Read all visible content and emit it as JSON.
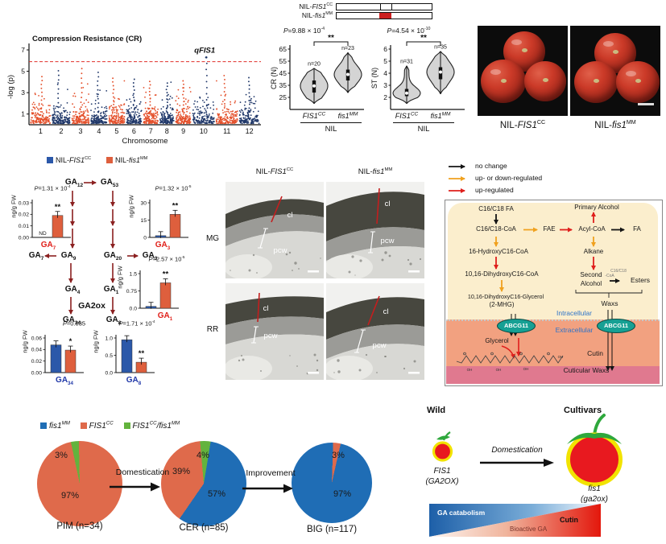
{
  "colors": {
    "chr_orange": "#e4502b",
    "chr_navy": "#20386a",
    "threshold_red": "#e0312a",
    "blue": "#2b58a9",
    "orange": "#de5f3d",
    "ga_red": "#e0201a",
    "ga_blue": "#2038a8",
    "arrow_dark": "#8b2020",
    "pie_blue": "#1f6db5",
    "pie_orange": "#df6a4b",
    "pie_green": "#63b33d",
    "wax_black": "#151515",
    "wax_orange": "#f0a11e",
    "wax_red": "#df1f1c",
    "cream": "#fbeecd",
    "salmon": "#f2a180",
    "pink_band": "#e0798f",
    "teal": "#16a094",
    "blue_text": "#2e74c8",
    "violin_fill": "#d4d4d4",
    "tomato_red": "#e8191f",
    "tomato_yellow": "#f2e300",
    "tomato_green": "#2ea83c",
    "wedge_blue": "#1d5fa8",
    "wedge_red": "#e3170c"
  },
  "manhattan": {
    "title": "Compression Resistance (CR)",
    "ylabel": "-log (p)",
    "xlabel": "Chromosome",
    "yticks": [
      7,
      5,
      3,
      1
    ],
    "chromosomes": [
      "1",
      "2",
      "3",
      "4",
      "5",
      "6",
      "7",
      "8",
      "9",
      "10",
      "11",
      "12"
    ],
    "threshold_value": 5.9,
    "peak": {
      "label": "qFIS1",
      "chromosome": "10",
      "value": 6.3
    }
  },
  "nil_schematic": {
    "rows": [
      {
        "pre": "NIL-",
        "gene": "FIS1",
        "sup": "CC"
      },
      {
        "pre": "NIL-",
        "gene": "fis1",
        "sup": "MM"
      }
    ]
  },
  "violins": {
    "plots": [
      {
        "ylabel": "CR (N)",
        "yticks": [
          65,
          55,
          45,
          35,
          25
        ],
        "p": {
          "pfx": "P",
          "body": "=9.88 × 10",
          "exp": "-4"
        },
        "sig": "**",
        "xlab": "NIL",
        "groups": [
          {
            "gene": "FIS1",
            "sup": "CC",
            "n": "n=20",
            "min": 20,
            "q1": 29,
            "med": 34.5,
            "q3": 39,
            "max": 49
          },
          {
            "gene": "fis1",
            "sup": "MM",
            "n": "n=23",
            "min": 29,
            "q1": 39,
            "med": 44,
            "q3": 48,
            "max": 62
          }
        ]
      },
      {
        "ylabel": "ST (N)",
        "yticks": [
          6,
          5,
          4,
          3,
          2
        ],
        "p": {
          "pfx": "P",
          "body": "=4.54 × 10",
          "exp": "-10"
        },
        "sig": "**",
        "xlab": "NIL",
        "groups": [
          {
            "gene": "FIS1",
            "sup": "CC",
            "n": "n=31",
            "min": 1.5,
            "q1": 2.1,
            "med": 2.35,
            "q3": 2.7,
            "max": 4.6
          },
          {
            "gene": "fis1",
            "sup": "MM",
            "n": "n=35",
            "min": 2.3,
            "q1": 3.5,
            "med": 4.1,
            "q3": 4.5,
            "max": 5.8
          }
        ]
      }
    ]
  },
  "photos": {
    "labels": [
      {
        "pre": "NIL-",
        "gene": "FIS1",
        "sup": "CC"
      },
      {
        "pre": "NIL-",
        "gene": "fis1",
        "sup": "MM"
      }
    ]
  },
  "ga_panel": {
    "legend": [
      {
        "pre": "NIL-",
        "gene": "FIS1",
        "sup": "CC"
      },
      {
        "pre": "NIL-",
        "gene": "fis1",
        "sup": "MM"
      }
    ],
    "unit": "ng/g FW",
    "enzyme": "GA2ox",
    "nodes": {
      "ga12": {
        "b": "GA",
        "s": "12"
      },
      "ga53": {
        "b": "GA",
        "s": "53"
      },
      "ga7": {
        "b": "GA",
        "s": "7"
      },
      "ga9": {
        "b": "GA",
        "s": "9"
      },
      "ga20": {
        "b": "GA",
        "s": "20"
      },
      "ga3": {
        "b": "GA",
        "s": "3"
      },
      "ga4": {
        "b": "GA",
        "s": "4"
      },
      "ga1": {
        "b": "GA",
        "s": "1"
      },
      "ga34": {
        "b": "GA",
        "s": "34"
      },
      "ga8": {
        "b": "GA",
        "s": "8"
      }
    },
    "charts": [
      {
        "p": {
          "pfx": "P",
          "body": "=1.31 × 10",
          "exp": "-4"
        },
        "ticks": [
          "0.03",
          "0.02",
          "0.01",
          "0.00"
        ],
        "max": 0.03,
        "values": [
          null,
          0.019
        ],
        "nd": "ND",
        "sig": "**",
        "label": {
          "b": "GA",
          "s": "7"
        },
        "label_color": "red"
      },
      {
        "p": {
          "pfx": "P",
          "body": "=1.32 × 10",
          "exp": "-5"
        },
        "ticks": [
          "30",
          "15",
          "0"
        ],
        "max": 30,
        "values": [
          1.5,
          20
        ],
        "nd": "",
        "sig": "**",
        "label": {
          "b": "GA",
          "s": "3"
        },
        "label_color": "red"
      },
      {
        "p": {
          "pfx": "P",
          "body": "=2.57 × 10",
          "exp": "-5"
        },
        "ticks": [
          "1.5",
          "0.75",
          "0.0"
        ],
        "max": 1.5,
        "values": [
          0.08,
          1.1
        ],
        "nd": "",
        "sig": "**",
        "label": {
          "b": "GA",
          "s": "1"
        },
        "label_color": "red"
      },
      {
        "p": {
          "pfx": "P",
          "body": "=0.035",
          "exp": ""
        },
        "ticks": [
          "0.06",
          "0.04",
          "0.02",
          "0.00"
        ],
        "max": 0.06,
        "values": [
          0.048,
          0.039
        ],
        "nd": "",
        "sig": "*",
        "label": {
          "b": "GA",
          "s": "34"
        },
        "label_color": "blue"
      },
      {
        "p": {
          "pfx": "P",
          "body": "=1.71 × 10",
          "exp": "-4"
        },
        "ticks": [
          "1.0",
          "0.5",
          "0.0"
        ],
        "max": 1.0,
        "values": [
          0.95,
          0.3
        ],
        "nd": "",
        "sig": "**",
        "label": {
          "b": "GA",
          "s": "8"
        },
        "label_color": "blue"
      }
    ]
  },
  "em_panel": {
    "col_labels": [
      {
        "pre": "NIL-",
        "gene": "FIS1",
        "sup": "CC"
      },
      {
        "pre": "NIL-",
        "gene": "fis1",
        "sup": "MM"
      }
    ],
    "row_labels": [
      "MG",
      "RR"
    ],
    "cl": "cl",
    "pcw": "pcw"
  },
  "wax_panel": {
    "legend": [
      {
        "color": "wax_black",
        "label": "no change"
      },
      {
        "color": "wax_orange",
        "label": "up- or down-regulated"
      },
      {
        "color": "wax_red",
        "label": "up-regulated"
      }
    ],
    "nodes": {
      "fa_top": "C16/C18 FA",
      "primary": "Primary Alcohol",
      "coa": "C16/C18-CoA",
      "fae": "FAE",
      "acyl": "Acyl-CoA",
      "fa": "FA",
      "hydroxy": "16-HydroxyC16-CoA",
      "alkane": "Alkane",
      "dihydroxy": "10,16-DihydroxyC16-CoA",
      "second1": "Second",
      "second2": "Alcohol",
      "coa_small1": "C16/C18",
      "coa_small2": "-CoA",
      "esters": "Esters",
      "glycerol2": "10,16-DihydroxyC16-Glycerol",
      "mhg": "(2-MHG)",
      "waxs": "Waxs",
      "intra": "Intracellular",
      "extra": "Extracellular",
      "abcg": "ABCG11",
      "glycerol": "Glycerol",
      "cutin": "Cutin",
      "cuticular": "Cuticular Waxs"
    }
  },
  "pies_panel": {
    "legend": [
      {
        "color": "pie_blue",
        "gene": "fis1",
        "sup": "MM",
        "gene2": "",
        "sup2": ""
      },
      {
        "color": "pie_orange",
        "gene": "FIS1",
        "sup": "CC",
        "gene2": "",
        "sup2": ""
      },
      {
        "color": "pie_green",
        "gene": "FIS1",
        "sup": "CC",
        "gene2": "/fis1",
        "sup2": "MM"
      }
    ],
    "pies": [
      {
        "caption": "PIM (n=34)",
        "from": -12,
        "slices": [
          {
            "color": "pie_green",
            "value": 3,
            "label": "3%"
          },
          {
            "color": "pie_orange",
            "value": 97,
            "label": "97%"
          }
        ]
      },
      {
        "caption": "CER (n=85)",
        "from": -5,
        "slices": [
          {
            "color": "pie_green",
            "value": 4,
            "label": "4%"
          },
          {
            "color": "pie_blue",
            "value": 57,
            "label": "57%"
          },
          {
            "color": "pie_orange",
            "value": 39,
            "label": "39%"
          }
        ]
      },
      {
        "caption": "BIG (n=117)",
        "from": 2,
        "slices": [
          {
            "color": "pie_orange",
            "value": 3,
            "label": "3%"
          },
          {
            "color": "pie_blue",
            "value": 97,
            "label": "97%"
          }
        ]
      }
    ],
    "arrows": [
      "Domestication",
      "Improvement"
    ]
  },
  "domestication_panel": {
    "wild": "Wild",
    "cultivars": "Cultivars",
    "arrow_label": "Domestication",
    "wild_gene": "FIS1",
    "wild_gene_paren": "(GA2OX)",
    "cult_gene": "fis1",
    "cult_gene_paren": "(ga2ox)",
    "wedge": {
      "left": "GA catabolism",
      "mid": "Bioactive GA",
      "right": "Cutin"
    }
  }
}
